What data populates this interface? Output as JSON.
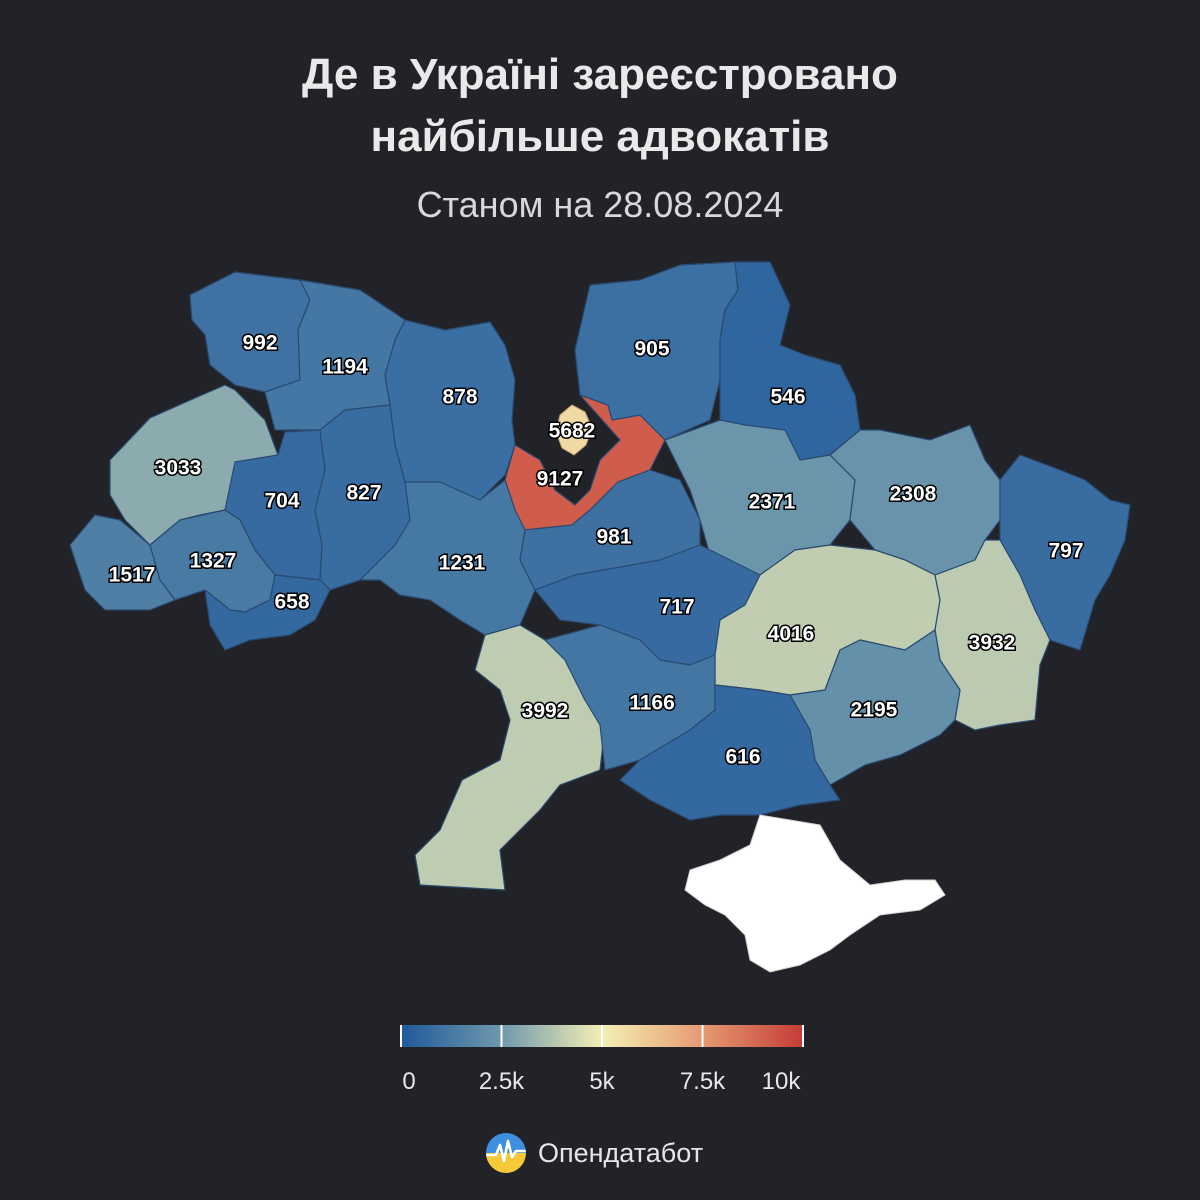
{
  "header": {
    "title_line1": "Де в Україні зареєстровано",
    "title_line2": "найбільше адвокатів",
    "subtitle": "Станом на 28.08.2024"
  },
  "colors": {
    "low": "#2f66a0",
    "mid": "#d2dcb5",
    "high": "#c9473e",
    "background": "#212328",
    "crimea": "#ffffff"
  },
  "chart_data": {
    "type": "choropleth",
    "values": [
      992,
      1194,
      878,
      5682,
      9127,
      905,
      546,
      3033,
      704,
      827,
      2371,
      2308,
      797,
      1517,
      1327,
      658,
      1231,
      981,
      717,
      4016,
      3932,
      3992,
      1166,
      2195,
      616
    ],
    "scale": {
      "min": 0,
      "max": 10000
    }
  },
  "legend": {
    "ticks": [
      {
        "value": 0,
        "label": "0"
      },
      {
        "value": 2500,
        "label": "2.5k"
      },
      {
        "value": 5000,
        "label": "5k"
      },
      {
        "value": 7500,
        "label": "7.5k"
      },
      {
        "value": 10000,
        "label": "10k"
      }
    ]
  },
  "brand": {
    "name": "Опендатабот",
    "logo_icon": "opendatabot-logo-icon"
  }
}
